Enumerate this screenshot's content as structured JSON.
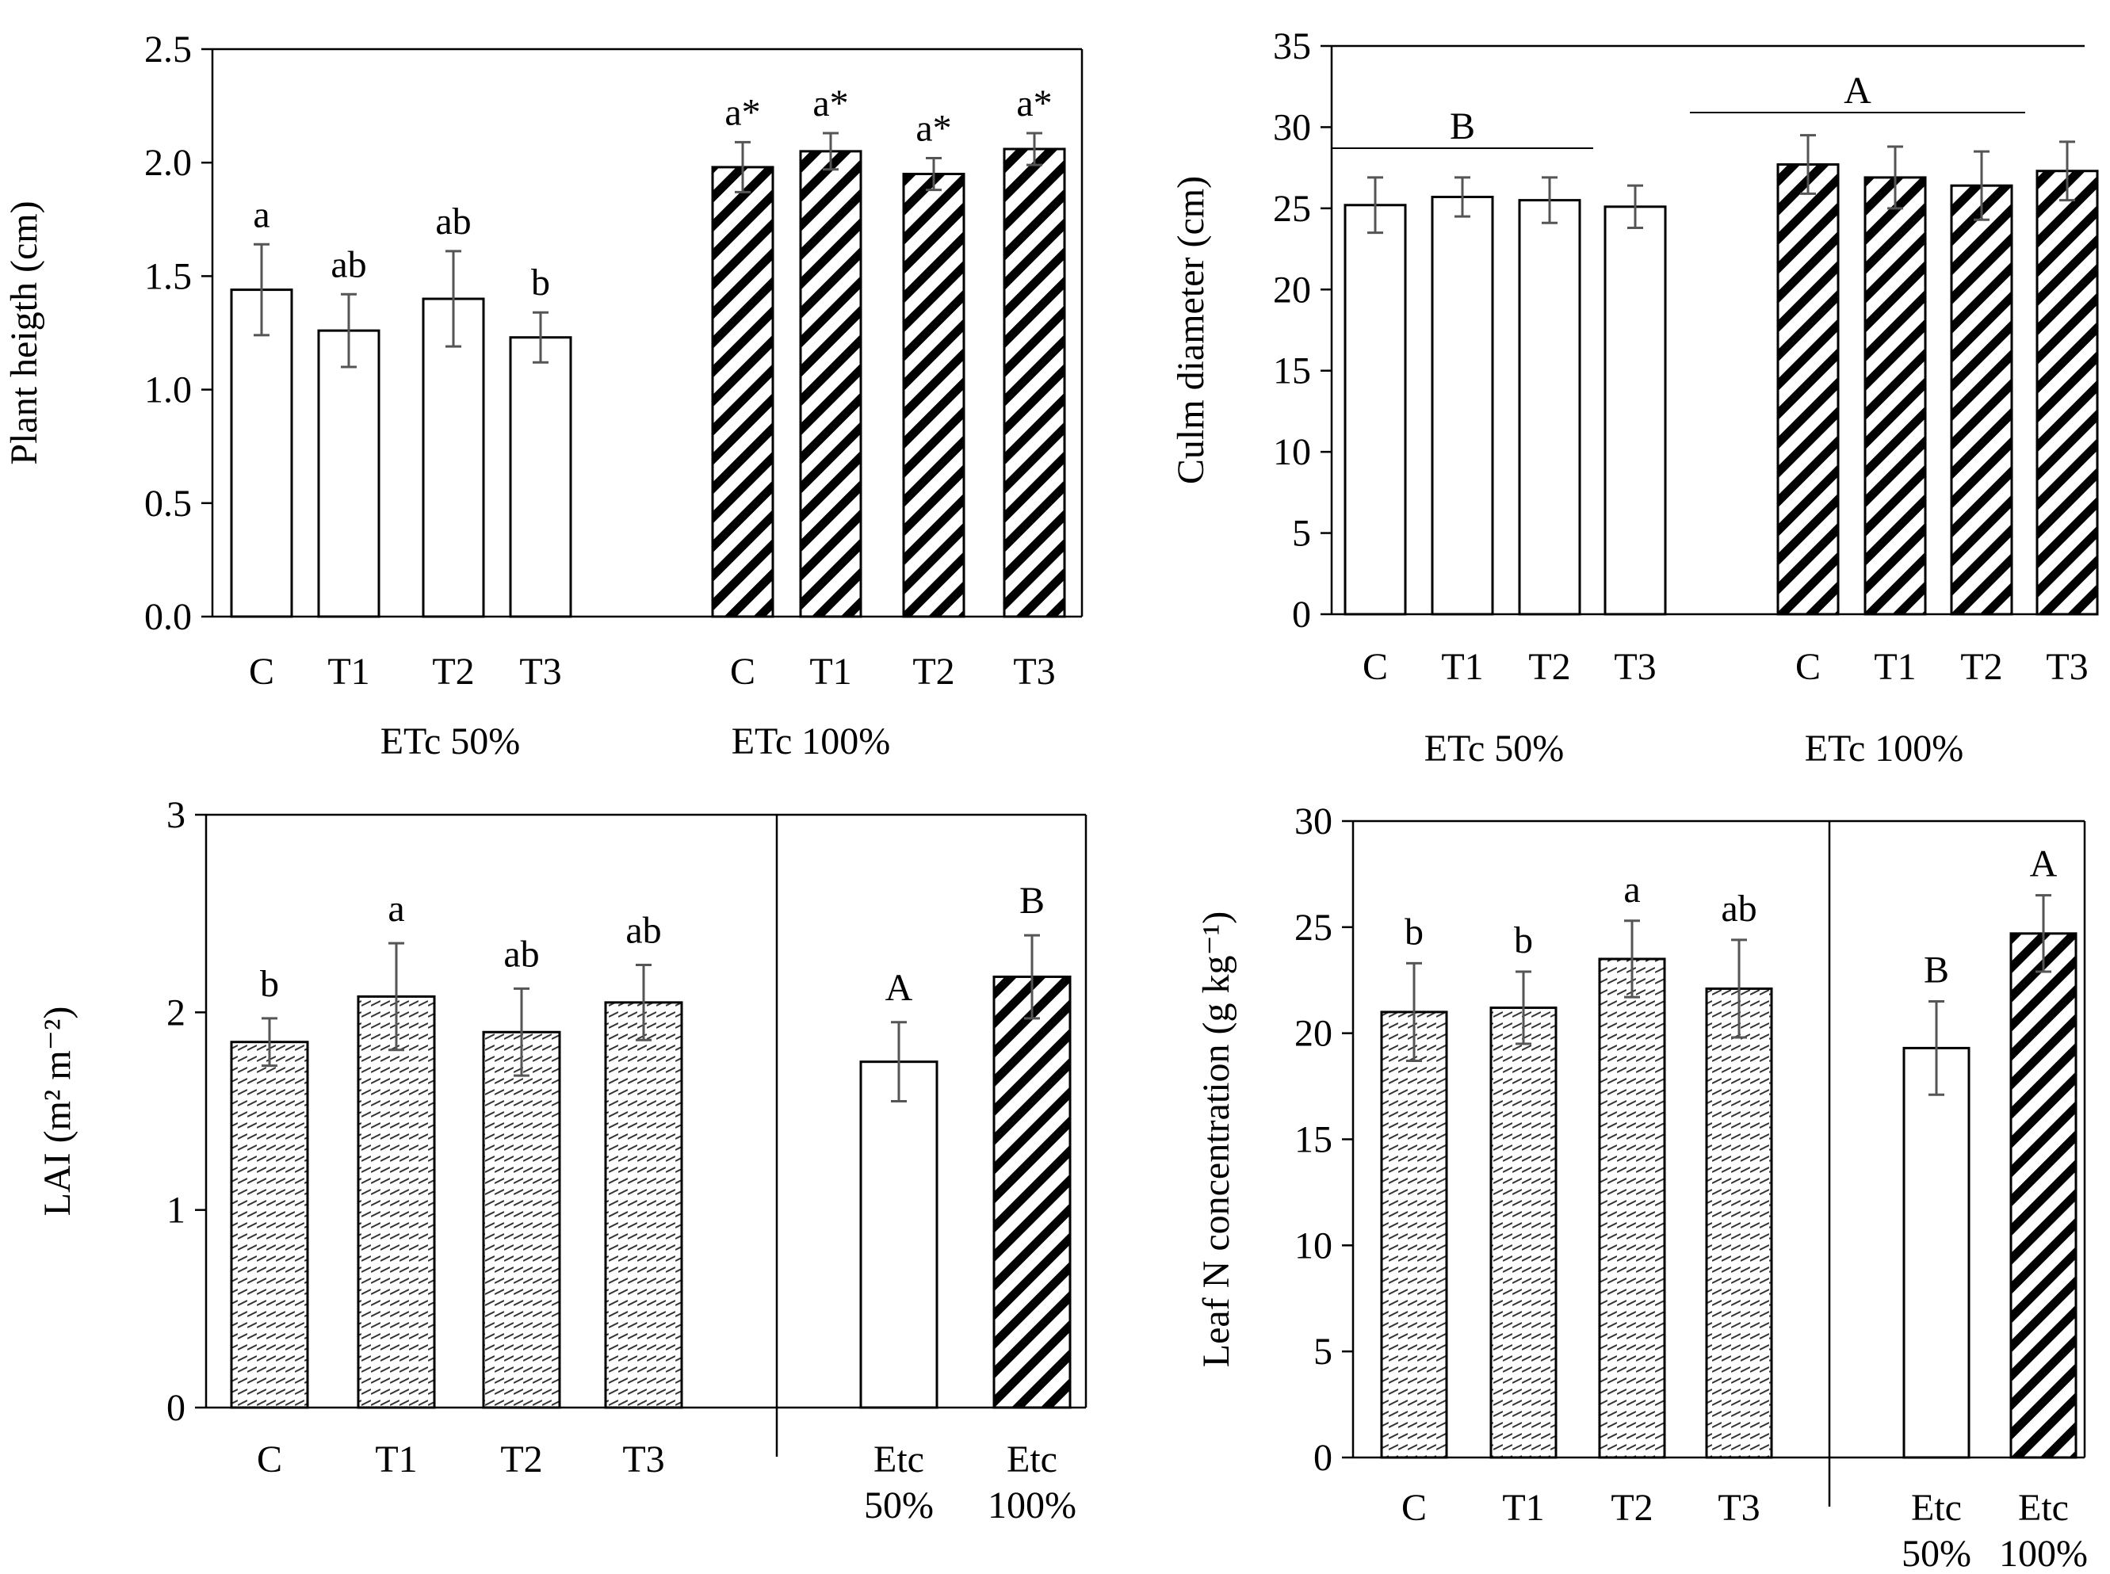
{
  "figure": {
    "panels": [
      {
        "chart_data": {
          "type": "bar",
          "ylabel": "Plant heigth (cm)",
          "ylim": [
            0,
            2.5
          ],
          "yticks": [
            "0.0",
            "0.5",
            "1.0",
            "1.5",
            "2.0",
            "2.5"
          ],
          "categories": [
            "C",
            "T1",
            "T2",
            "T3",
            "C",
            "T1",
            "T2",
            "T3"
          ],
          "values": [
            1.44,
            1.26,
            1.4,
            1.23,
            1.98,
            2.05,
            1.95,
            2.06
          ],
          "errors": [
            0.2,
            0.16,
            0.21,
            0.11,
            0.11,
            0.08,
            0.07,
            0.07
          ],
          "fills": [
            "white",
            "white",
            "white",
            "white",
            "diagonal",
            "diagonal",
            "diagonal",
            "diagonal"
          ],
          "letters": [
            "a",
            "ab",
            "ab",
            "b",
            "a*",
            "a*",
            "a*",
            "a*"
          ],
          "group_labels": [
            "ETc 50%",
            "ETc 100%"
          ],
          "group_brackets": []
        }
      },
      {
        "chart_data": {
          "type": "bar",
          "ylabel": "Culm diameter (cm)",
          "ylim": [
            0,
            35
          ],
          "yticks": [
            "0",
            "5",
            "10",
            "15",
            "20",
            "25",
            "30",
            "35"
          ],
          "categories": [
            "C",
            "T1",
            "T2",
            "T3",
            "C",
            "T1",
            "T2",
            "T3"
          ],
          "values": [
            25.2,
            25.7,
            25.5,
            25.1,
            27.7,
            26.9,
            26.4,
            27.3
          ],
          "errors": [
            1.7,
            1.2,
            1.4,
            1.3,
            1.8,
            1.9,
            2.1,
            1.8
          ],
          "fills": [
            "white",
            "white",
            "white",
            "white",
            "diagonal",
            "diagonal",
            "diagonal",
            "diagonal"
          ],
          "letters": [],
          "group_labels": [
            "ETc 50%",
            "ETc 100%"
          ],
          "group_brackets": [
            {
              "label": "B",
              "level": 28.7
            },
            {
              "label": "A",
              "level": 30.9
            }
          ]
        }
      },
      {
        "chart_data": {
          "type": "bar",
          "ylabel": "LAI (m² m⁻²)",
          "ylim": [
            0,
            3
          ],
          "yticks": [
            "0",
            "1",
            "2",
            "3"
          ],
          "categories": [
            "C",
            "T1",
            "T2",
            "T3",
            "Etc\n50%",
            "Etc\n100%"
          ],
          "values": [
            1.85,
            2.08,
            1.9,
            2.05,
            1.75,
            2.18
          ],
          "errors": [
            0.12,
            0.27,
            0.22,
            0.19,
            0.2,
            0.21
          ],
          "fills": [
            "dotted",
            "dotted",
            "dotted",
            "dotted",
            "white",
            "diagonal"
          ],
          "letters": [
            "b",
            "a",
            "ab",
            "ab",
            "A",
            "B"
          ],
          "group_labels": [],
          "group_brackets": []
        }
      },
      {
        "chart_data": {
          "type": "bar",
          "ylabel": "Leaf N concentration (g kg⁻¹)",
          "ylim": [
            0,
            30
          ],
          "yticks": [
            "0",
            "5",
            "10",
            "15",
            "20",
            "25",
            "30"
          ],
          "categories": [
            "C",
            "T1",
            "T2",
            "T3",
            "Etc\n50%",
            "Etc\n100%"
          ],
          "values": [
            21.0,
            21.2,
            23.5,
            22.1,
            19.3,
            24.7
          ],
          "errors": [
            2.3,
            1.7,
            1.8,
            2.3,
            2.2,
            1.8
          ],
          "fills": [
            "dotted",
            "dotted",
            "dotted",
            "dotted",
            "white",
            "diagonal"
          ],
          "letters": [
            "b",
            "b",
            "a",
            "ab",
            "B",
            "A"
          ],
          "group_labels": [],
          "group_brackets": []
        }
      }
    ]
  }
}
